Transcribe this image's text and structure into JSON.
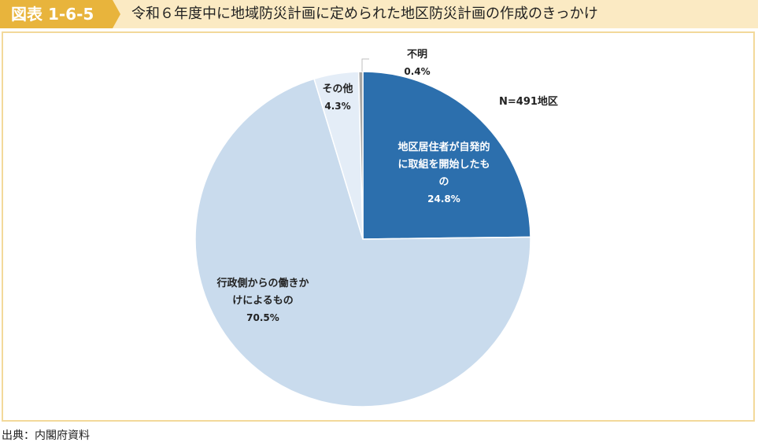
{
  "header": {
    "figure_number": "図表 1-6-5",
    "title": "令和６年度中に地域防災計画に定められた地区防災計画の作成のきっかけ"
  },
  "footer": {
    "source": "出典：内閣府資料"
  },
  "colors": {
    "tag": "#e8b43c",
    "title_bar": "#fbeac3",
    "frame_border": "#f3d99a"
  },
  "chart_data": {
    "type": "pie",
    "note": "N=491地区",
    "slices": [
      {
        "label": [
          "地区居住者が自発的",
          "に取組を開始したも",
          "の"
        ],
        "value_label": "24.8%",
        "value": 24.8,
        "color": "#2c6fad",
        "text_color": "#ffffff"
      },
      {
        "label": [
          "行政側からの働きか",
          "けによるもの"
        ],
        "value_label": "70.5%",
        "value": 70.5,
        "color": "#c9dbed",
        "text_color": "#222222"
      },
      {
        "label": [
          "その他"
        ],
        "value_label": "4.3%",
        "value": 4.3,
        "color": "#e4edf7",
        "text_color": "#222222"
      },
      {
        "label": [
          "不明"
        ],
        "value_label": "0.4%",
        "value": 0.4,
        "color": "#a6a6a6",
        "text_color": "#222222"
      }
    ]
  }
}
